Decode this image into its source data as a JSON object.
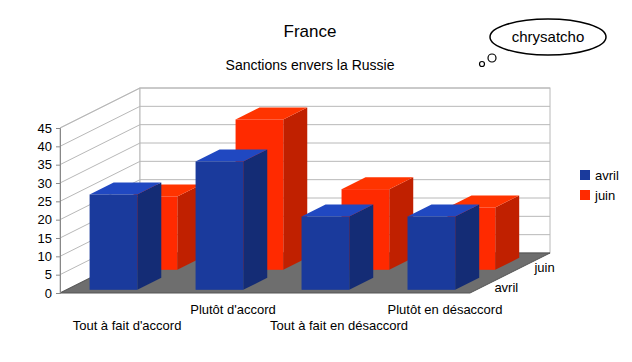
{
  "chart_data": {
    "type": "bar",
    "title": "France",
    "subtitle": "Sanctions envers la Russie",
    "annotations": [
      "chrysatcho"
    ],
    "categories": [
      "Tout à fait d'accord",
      "Plutôt d'accord",
      "Tout à fait en désaccord",
      "Plutôt en désaccord"
    ],
    "series": [
      {
        "name": "avril",
        "color": "#1a3a9c",
        "values": [
          26,
          35,
          20,
          20
        ]
      },
      {
        "name": "juin",
        "color": "#ff2a00",
        "values": [
          20,
          41,
          22,
          17
        ]
      }
    ],
    "ylim": [
      0,
      45
    ],
    "yticks": [
      0,
      5,
      10,
      15,
      20,
      25,
      30,
      35,
      40,
      45
    ],
    "grid": true,
    "legend": "right"
  }
}
